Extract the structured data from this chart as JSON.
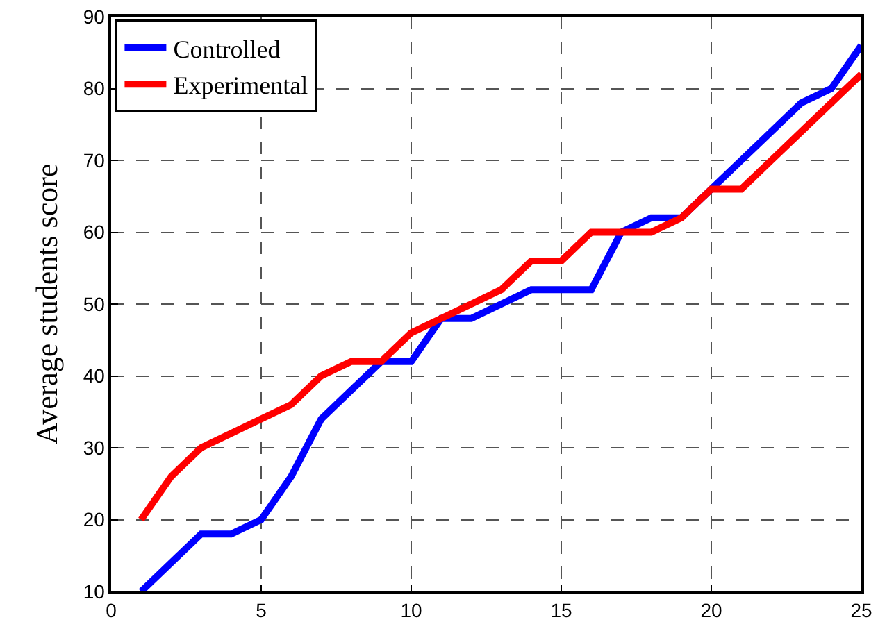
{
  "chart_data": {
    "type": "line",
    "ylabel": "Average students score",
    "x": [
      1,
      2,
      3,
      4,
      5,
      6,
      7,
      8,
      9,
      10,
      11,
      12,
      13,
      14,
      15,
      16,
      17,
      18,
      19,
      20,
      21,
      22,
      23,
      24,
      25
    ],
    "series": [
      {
        "name": "Controlled",
        "color": "#0000ff",
        "values": [
          10,
          14,
          18,
          18,
          20,
          26,
          34,
          38,
          42,
          42,
          48,
          48,
          50,
          52,
          52,
          52,
          60,
          62,
          62,
          66,
          70,
          74,
          78,
          80,
          86
        ]
      },
      {
        "name": "Experimental",
        "color": "#ff0000",
        "values": [
          20,
          26,
          30,
          32,
          34,
          36,
          40,
          42,
          42,
          46,
          48,
          50,
          52,
          56,
          56,
          60,
          60,
          60,
          62,
          66,
          66,
          70,
          74,
          78,
          82
        ]
      }
    ],
    "xlim": [
      0,
      25
    ],
    "xticks": [
      0,
      5,
      10,
      15,
      20,
      25
    ],
    "ylim": [
      10,
      90
    ],
    "yticks": [
      10,
      20,
      30,
      40,
      50,
      60,
      70,
      80,
      90
    ],
    "grid": true,
    "legend": "top left",
    "marker": "none",
    "line_style": "solid"
  }
}
